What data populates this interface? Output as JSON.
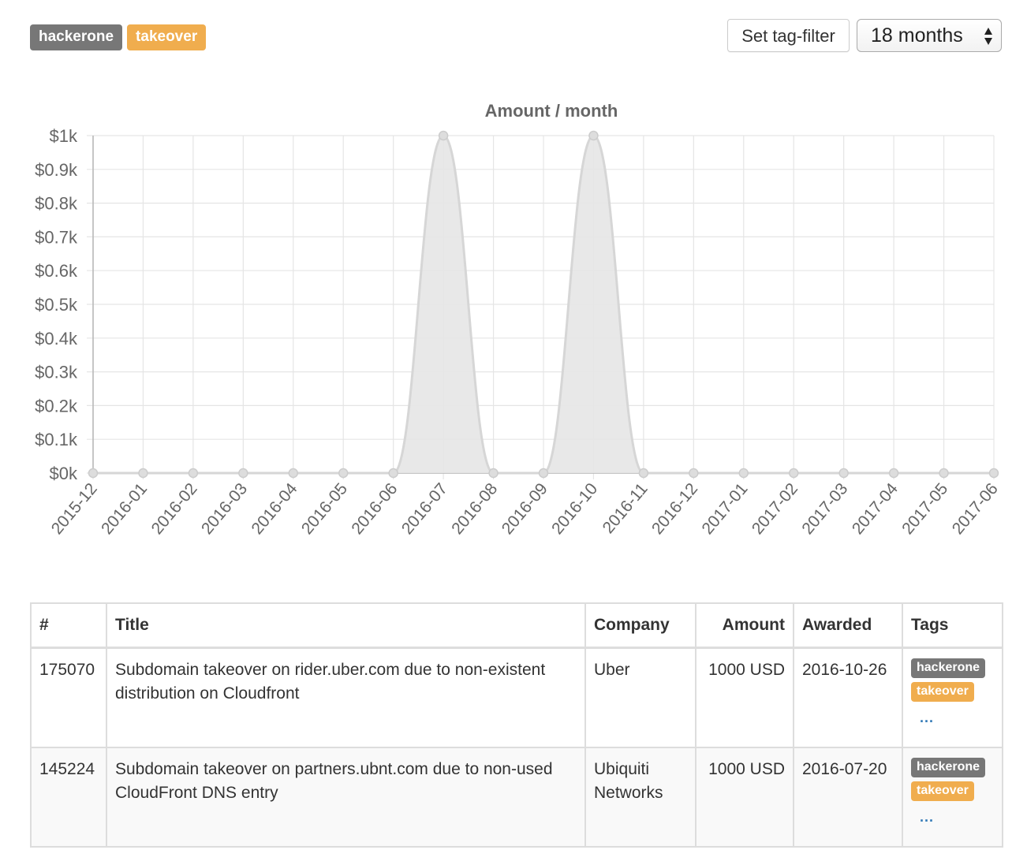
{
  "header": {
    "tags": [
      {
        "label": "hackerone",
        "color": "#777777"
      },
      {
        "label": "takeover",
        "color": "#f0ad4e"
      }
    ],
    "filter_button_label": "Set tag-filter",
    "period_select_value": "18 months"
  },
  "chart_data": {
    "type": "area",
    "title": "Amount / month",
    "xlabel": "",
    "ylabel": "",
    "categories": [
      "2015-12",
      "2016-01",
      "2016-02",
      "2016-03",
      "2016-04",
      "2016-05",
      "2016-06",
      "2016-07",
      "2016-08",
      "2016-09",
      "2016-10",
      "2016-11",
      "2016-12",
      "2017-01",
      "2017-02",
      "2017-03",
      "2017-04",
      "2017-05",
      "2017-06"
    ],
    "values": [
      0,
      0,
      0,
      0,
      0,
      0,
      0,
      1000,
      0,
      0,
      1000,
      0,
      0,
      0,
      0,
      0,
      0,
      0,
      0
    ],
    "ylim": [
      0,
      1000
    ],
    "yticks": [
      {
        "value": 0,
        "label": "$0k"
      },
      {
        "value": 100,
        "label": "$0.1k"
      },
      {
        "value": 200,
        "label": "$0.2k"
      },
      {
        "value": 300,
        "label": "$0.3k"
      },
      {
        "value": 400,
        "label": "$0.4k"
      },
      {
        "value": 500,
        "label": "$0.5k"
      },
      {
        "value": 600,
        "label": "$0.6k"
      },
      {
        "value": 700,
        "label": "$0.7k"
      },
      {
        "value": 800,
        "label": "$0.8k"
      },
      {
        "value": 900,
        "label": "$0.9k"
      },
      {
        "value": 1000,
        "label": "$1k"
      }
    ],
    "grid": true,
    "legend": "none",
    "fill_color": "#e6e6e6",
    "line_color": "#d6d6d6",
    "point_color": "#cccccc"
  },
  "table": {
    "columns": [
      "#",
      "Title",
      "Company",
      "Amount",
      "Awarded",
      "Tags"
    ],
    "rows": [
      {
        "id": "175070",
        "title": "Subdomain takeover on rider.uber.com due to non-existent distribution on Cloudfront",
        "company": "Uber",
        "amount": "1000 USD",
        "awarded": "2016-10-26",
        "tags": [
          "hackerone",
          "takeover"
        ],
        "more": "..."
      },
      {
        "id": "145224",
        "title": "Subdomain takeover on partners.ubnt.com due to non-used CloudFront DNS entry",
        "company": "Ubiquiti Networks",
        "amount": "1000 USD",
        "awarded": "2016-07-20",
        "tags": [
          "hackerone",
          "takeover"
        ],
        "more": "..."
      }
    ]
  }
}
